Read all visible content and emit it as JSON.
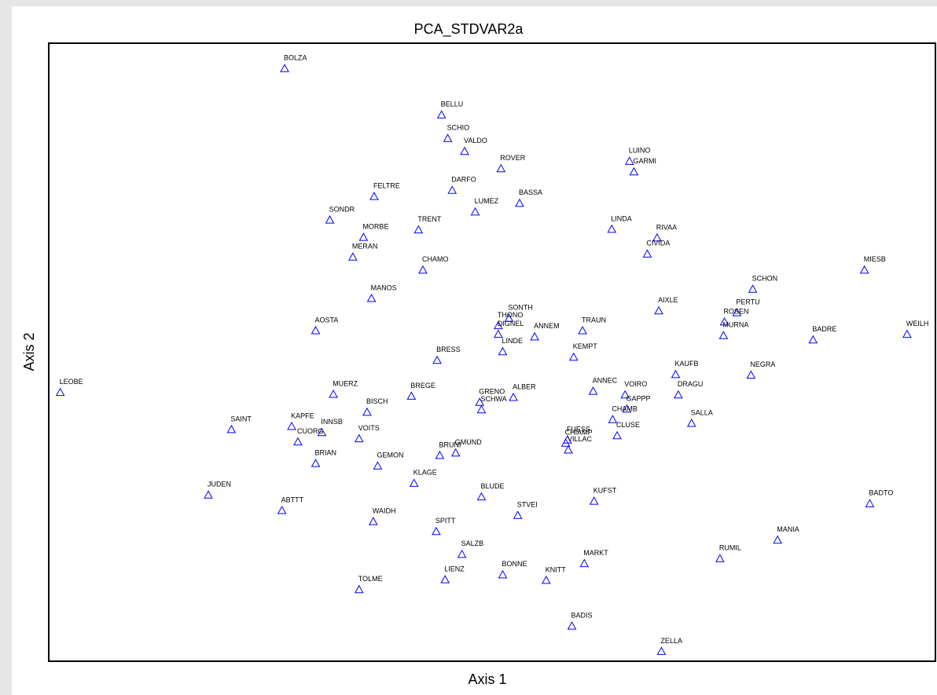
{
  "chart_data": {
    "type": "scatter",
    "title": "PCA_STDVAR2a",
    "x_label": "Axis 1",
    "y_label": "Axis 2",
    "color": "#0000ff",
    "marker": "triangle",
    "xlim": [
      0,
      100
    ],
    "ylim": [
      0,
      100
    ],
    "labels": [
      "BOLZA",
      "BELLU",
      "SCHIO",
      "VALDO",
      "ROVER",
      "LUINO",
      "GARMI",
      "DARFO",
      "BASSA",
      "FELTRE",
      "LUMEZ",
      "SONDR",
      "TRENT",
      "LINDA",
      "RIVAA",
      "MORBE",
      "MERAN",
      "CIVIDA",
      "CHAMO",
      "MIESB",
      "SCHON",
      "MANOS",
      "AIXLE",
      "PERTU",
      "ROSEN",
      "MURNA",
      "SONTH",
      "THONO",
      "DIGNEL",
      "ANNEM",
      "TRAUN",
      "LINDE",
      "AOSTA",
      "BADRE",
      "WEILH",
      "KEMPT",
      "BRESS",
      "KAUFB",
      "NEGRA",
      "LEOBE",
      "MUERZ",
      "BREGE",
      "ANNEC",
      "VOIRO",
      "ALBER",
      "GRENO",
      "SCHWA",
      "GAPPP",
      "DRAGU",
      "BISCH",
      "CHAMB",
      "SALLA",
      "SAINT",
      "KAPFE",
      "INNSB",
      "CUORG",
      "VOITS",
      "CLUSE",
      "FUESS",
      "CHIAMP",
      "VILLAC",
      "GMUND",
      "BRUNI",
      "BRIAN",
      "GEMON",
      "KLAGE",
      "JUDEN",
      "BLUDE",
      "ABTTT",
      "KUFST",
      "STVEI",
      "BADTO",
      "WAIDH",
      "SPITT",
      "MANIA",
      "SALZB",
      "RUMIL",
      "MARKT",
      "BONNE",
      "LIENZ",
      "KNITT",
      "TOLME",
      "BADIS",
      "ZELLA"
    ],
    "x": [
      26.6,
      44.3,
      45.0,
      46.9,
      51.0,
      65.5,
      66.0,
      45.5,
      53.1,
      36.7,
      48.1,
      31.7,
      41.7,
      63.5,
      68.6,
      35.5,
      34.3,
      67.5,
      42.2,
      92.0,
      79.4,
      36.4,
      68.8,
      77.6,
      76.2,
      76.1,
      51.9,
      50.7,
      50.7,
      54.8,
      60.2,
      51.2,
      30.1,
      86.2,
      96.8,
      59.2,
      43.8,
      70.7,
      79.2,
      1.3,
      32.1,
      40.9,
      61.4,
      65.0,
      52.4,
      48.6,
      48.8,
      65.2,
      71.0,
      35.9,
      63.6,
      72.5,
      20.6,
      27.4,
      30.8,
      28.1,
      35.0,
      64.1,
      58.5,
      58.3,
      58.6,
      45.9,
      44.1,
      30.1,
      37.1,
      41.2,
      18.0,
      48.8,
      26.3,
      61.5,
      52.9,
      92.6,
      36.6,
      43.7,
      82.2,
      46.6,
      75.7,
      60.4,
      51.2,
      44.7,
      56.1,
      35.0,
      59.0,
      69.1
    ],
    "y": [
      95.9,
      88.4,
      84.6,
      82.5,
      79.7,
      80.9,
      79.2,
      76.2,
      74.1,
      75.2,
      72.7,
      71.4,
      69.8,
      69.9,
      68.5,
      68.6,
      65.4,
      65.9,
      63.3,
      63.3,
      60.2,
      58.7,
      56.7,
      56.4,
      54.9,
      52.7,
      55.5,
      54.3,
      52.9,
      52.5,
      53.5,
      50.1,
      53.5,
      52.0,
      52.9,
      49.2,
      48.7,
      46.4,
      46.3,
      43.5,
      43.2,
      42.9,
      43.7,
      43.1,
      42.7,
      41.9,
      40.7,
      40.8,
      43.1,
      40.3,
      39.1,
      38.5,
      37.5,
      38.0,
      37.0,
      35.5,
      36.0,
      36.5,
      35.8,
      35.3,
      34.2,
      33.7,
      33.3,
      32.0,
      31.6,
      28.8,
      26.9,
      26.6,
      24.4,
      25.9,
      23.6,
      25.5,
      22.6,
      21.0,
      19.6,
      17.3,
      16.6,
      15.8,
      14.0,
      13.2,
      13.1,
      11.6,
      5.7,
      1.6
    ]
  }
}
